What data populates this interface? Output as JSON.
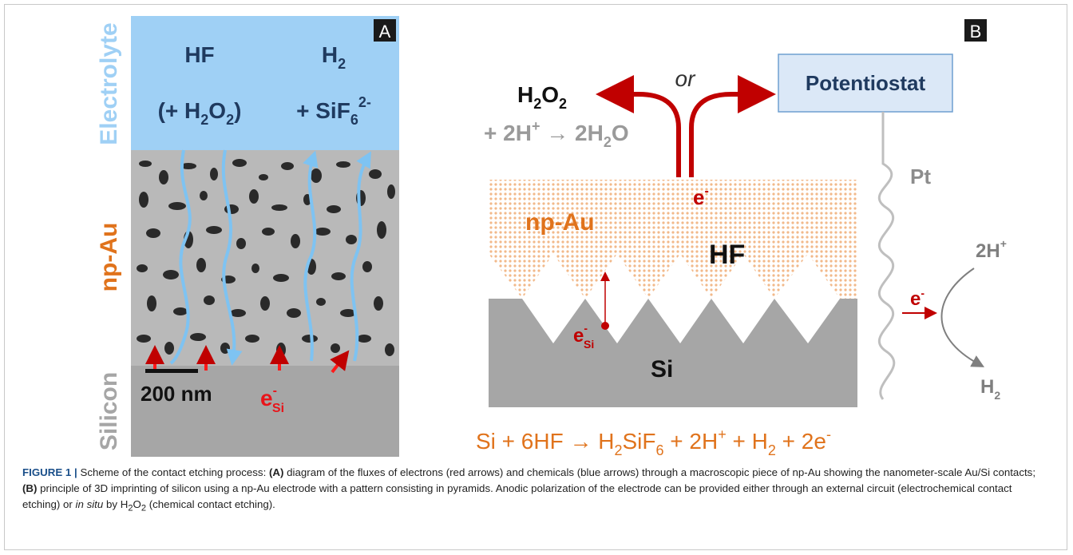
{
  "panel_a": {
    "badge": "A",
    "side_labels": {
      "electrolyte": "Electrolyte",
      "np_au": "np-Au",
      "silicon": "Silicon"
    },
    "hf_label": "HF",
    "h2o2_paren": {
      "open": "(+ H",
      "sub1": "2",
      "mid": "O",
      "sub2": "2",
      "close": ")"
    },
    "h2_label": {
      "base": "H",
      "sub": "2"
    },
    "sif6_label": {
      "prefix": "+ SiF",
      "sub": "6",
      "sup": "2-"
    },
    "scale_bar": "200 nm",
    "electron": {
      "base": "e",
      "sup": "-",
      "sub": "Si"
    }
  },
  "panel_b": {
    "badge": "B",
    "or_label": "or",
    "potentiostat": "Potentiostat",
    "h2o2": {
      "base": "H",
      "sub1": "2",
      "mid": "O",
      "sub2": "2"
    },
    "reduction": {
      "prefix": "+  2H",
      "sup": "+",
      "arrow": " → ",
      "prod": "2H",
      "sub": "2",
      "suffix": "O"
    },
    "e_top": {
      "base": "e",
      "sup": "-"
    },
    "np_au": "np-Au",
    "hf": "HF",
    "si": "Si",
    "e_si": {
      "base": "e",
      "sup": "-",
      "sub": "Si"
    },
    "pt": "Pt",
    "two_h": {
      "base": "2H",
      "sup": "+"
    },
    "e_pt": {
      "base": "e",
      "sup": "-"
    },
    "h2": {
      "base": "H",
      "sub": "2"
    },
    "equation": {
      "p1": "Si + 6HF → H",
      "s1": "2",
      "p2": "SiF",
      "s2": "6",
      "p3": " + 2H",
      "sup1": "+",
      "p4": " + H",
      "s3": "2",
      "p5": " + 2e",
      "sup2": "-"
    }
  },
  "caption": {
    "fig_label": "FIGURE 1 |",
    "t1": " Scheme of the contact etching process: ",
    "a_tag": "(A)",
    "t2": " diagram of the fluxes of electrons (red arrows) and chemicals (blue arrows) through a macroscopic piece of np-Au showing the nanometer-scale Au/Si contacts; ",
    "b_tag": "(B)",
    "t3": " principle of 3D imprinting of silicon using a np-Au electrode with a pattern consisting in pyramids. Anodic polarization of the electrode can be provided either through an external circuit (electrochemical contact etching) or ",
    "insitu": "in situ",
    "t4": " by H",
    "sub1": "2",
    "t5": "O",
    "sub2": "2",
    "t6": " (chemical contact etching)."
  },
  "colors": {
    "electrolyte": "#9fd0f5",
    "silicon": "#a6a6a6",
    "orange": "#e0731c",
    "red": "#c00000",
    "blue_arrow": "#7ec3f2",
    "navy": "#1f3a5f",
    "potentiostat_fill": "#dbe8f7"
  }
}
